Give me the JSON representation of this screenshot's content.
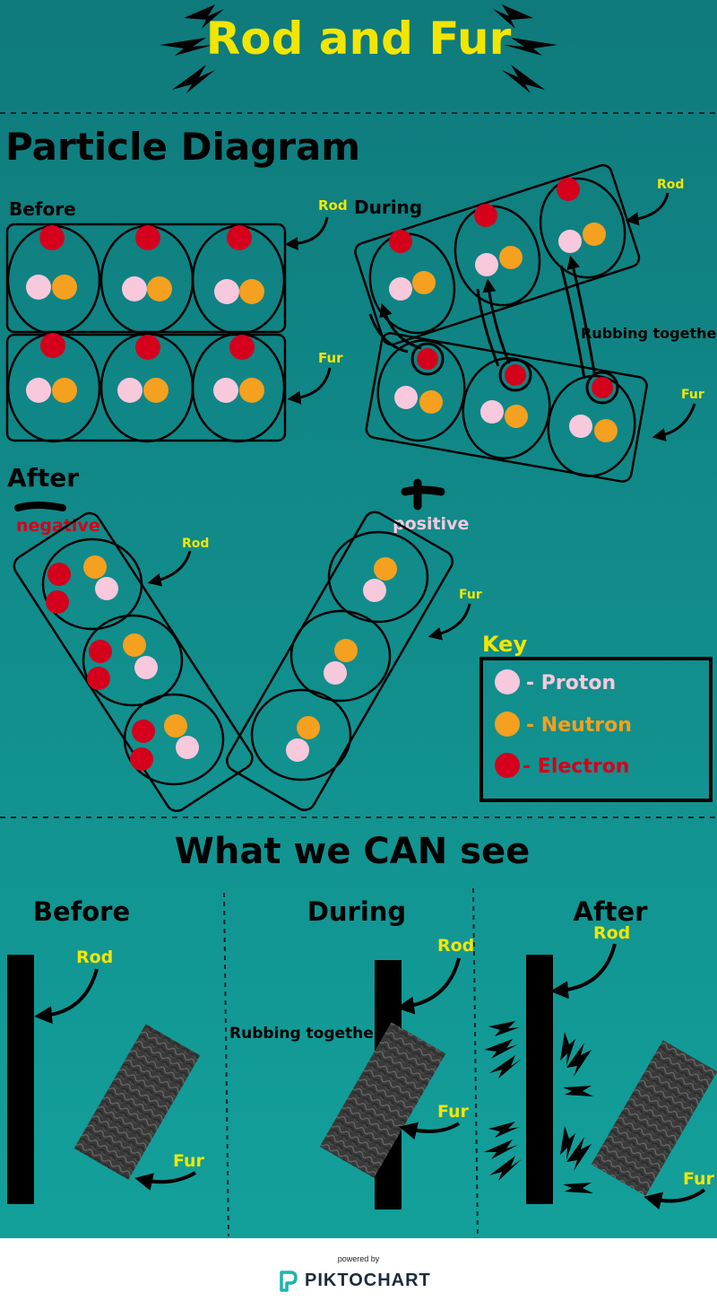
{
  "title": "Rod and Fur",
  "section1": {
    "title": "Particle Diagram",
    "before_label": "Before",
    "during_label": "During",
    "after_label": "After",
    "rod_label": "Rod",
    "fur_label": "Fur",
    "rubbing_label": "Rubbing together",
    "negative_label": "negative",
    "positive_label": "positive"
  },
  "key": {
    "title": "Key",
    "items": [
      {
        "label": "- Proton",
        "color": "#f8c8dc"
      },
      {
        "label": "- Neutron",
        "color": "#f5a01e"
      },
      {
        "label": "- Electron",
        "color": "#d4001c"
      }
    ]
  },
  "section2": {
    "title": "What we CAN see",
    "before_label": "Before",
    "during_label": "During",
    "after_label": "After",
    "rod_label": "Rod",
    "fur_label": "Fur",
    "rubbing_label": "Rubbing together"
  },
  "footer": {
    "powered_by": "powered by",
    "brand": "PIKTOCHART"
  },
  "colors": {
    "background": "#16888a",
    "title": "#f2e600",
    "proton": "#f8c8dc",
    "neutron": "#f5a01e",
    "electron": "#d4001c",
    "label_yellow": "#f2e600",
    "positive_pink": "#f8c8dc"
  }
}
